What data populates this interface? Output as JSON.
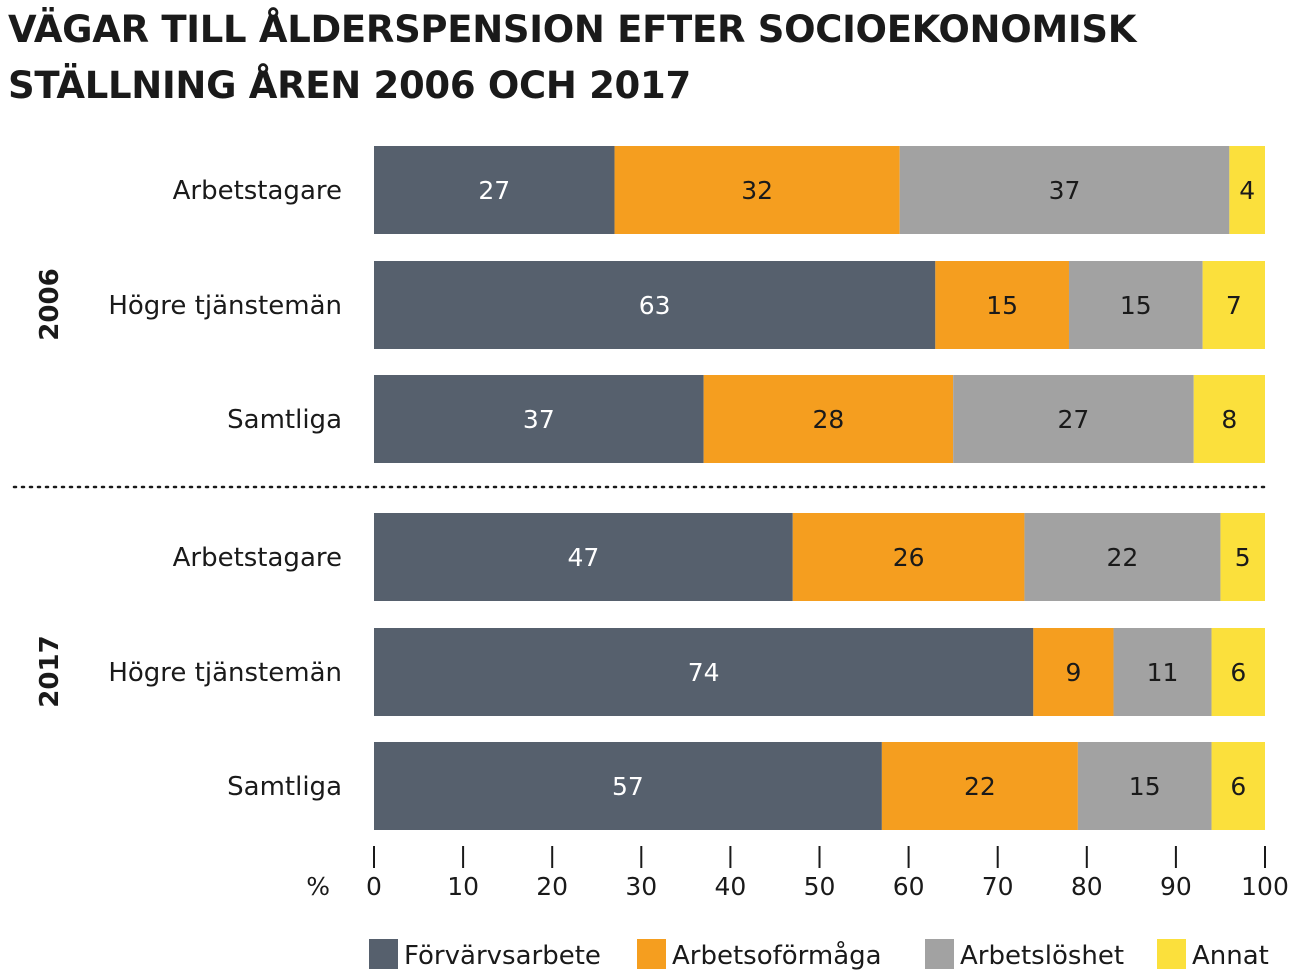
{
  "chart_data": {
    "type": "bar",
    "orientation": "horizontal",
    "stacked": true,
    "title": "VÄGAR TILL ÅLDERSPENSION EFTER SOCIOEKONOMISK STÄLLNING ÅREN 2006 OCH 2017",
    "xlabel": "%",
    "xlim": [
      0,
      100
    ],
    "xticks": [
      0,
      10,
      20,
      30,
      40,
      50,
      60,
      70,
      80,
      90,
      100
    ],
    "grid": false,
    "legend_position": "bottom",
    "groups": [
      {
        "name": "2006",
        "categories": [
          "Arbetstagare",
          "Högre tjänstemän",
          "Samtliga"
        ],
        "series": [
          {
            "name": "Förvärvsarbete",
            "values": [
              27,
              63,
              37
            ]
          },
          {
            "name": "Arbetsoförmåga",
            "values": [
              32,
              15,
              28
            ]
          },
          {
            "name": "Arbetslöshet",
            "values": [
              37,
              15,
              27
            ]
          },
          {
            "name": "Annat",
            "values": [
              4,
              7,
              8
            ]
          }
        ]
      },
      {
        "name": "2017",
        "categories": [
          "Arbetstagare",
          "Högre tjänstemän",
          "Samtliga"
        ],
        "series": [
          {
            "name": "Förvärvsarbete",
            "values": [
              47,
              74,
              57
            ]
          },
          {
            "name": "Arbetsoförmåga",
            "values": [
              26,
              9,
              22
            ]
          },
          {
            "name": "Arbetslöshet",
            "values": [
              22,
              11,
              15
            ]
          },
          {
            "name": "Annat",
            "values": [
              5,
              6,
              6
            ]
          }
        ]
      }
    ],
    "colors": {
      "Förvärvsarbete": "#56606d",
      "Arbetsoförmåga": "#f59e1f",
      "Arbetslöshet": "#a2a2a2",
      "Annat": "#fbe03c"
    },
    "label_colors": {
      "Förvärvsarbete": "#ffffff",
      "Arbetsoförmåga": "#1a1a1a",
      "Arbetslöshet": "#1a1a1a",
      "Annat": "#1a1a1a"
    }
  }
}
